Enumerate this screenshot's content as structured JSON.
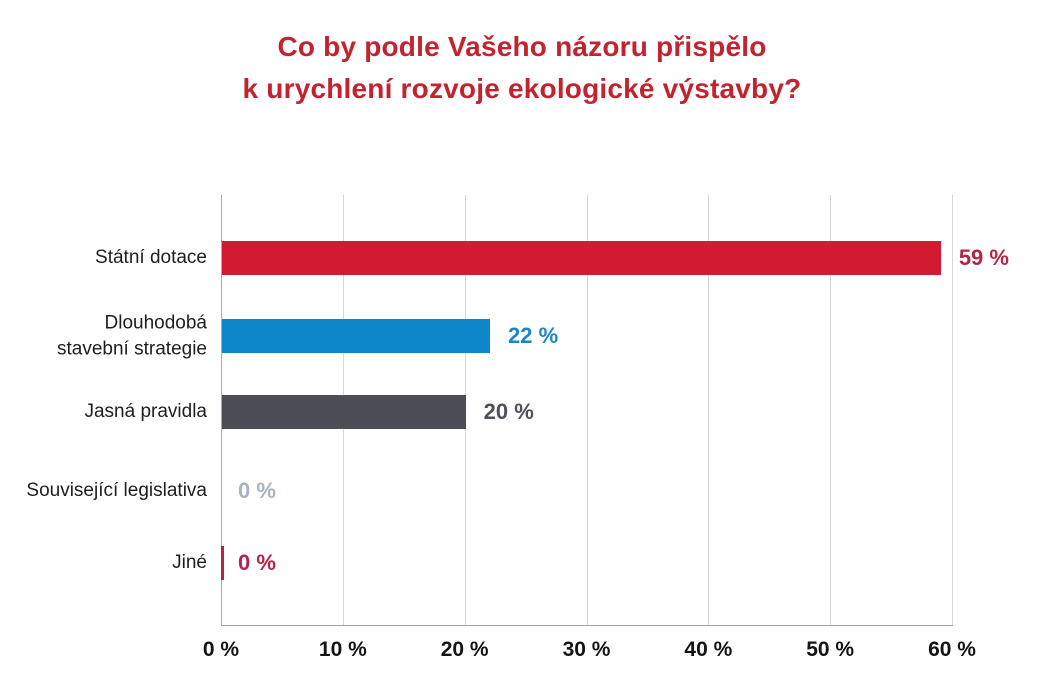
{
  "title": {
    "line1": "Co by podle Vašeho názoru přispělo",
    "line2": "k urychlení rozvoje ekologické výstavby?"
  },
  "colors": {
    "title": "#c3232f",
    "axis_line": "#ababab",
    "gridline": "#d7d7d7",
    "category_label": "#1e1e1e",
    "tick_label": "#141414"
  },
  "chart_data": {
    "type": "bar",
    "orientation": "horizontal",
    "title": "Co by podle Vašeho názoru přispělo k urychlení rozvoje ekologické výstavby?",
    "xlabel": "",
    "ylabel": "",
    "xlim": [
      0,
      60
    ],
    "x_tick_labels": [
      "0 %",
      "10 %",
      "20 %",
      "30 %",
      "40 %",
      "50 %",
      "60 %"
    ],
    "grid": "vertical",
    "legend": "none",
    "bars": [
      {
        "category": "Státní dotace",
        "value": 59,
        "value_label": "59 %",
        "bar_color": "#d21a33",
        "value_label_color": "#b42544",
        "zero_tick": false
      },
      {
        "category": "Dlouhodobá\nstavební strategie",
        "value": 22,
        "value_label": "22 %",
        "bar_color": "#0d87c9",
        "value_label_color": "#1a86c6",
        "zero_tick": false
      },
      {
        "category": "Jasná pravidla",
        "value": 20,
        "value_label": "20 %",
        "bar_color": "#4a4e54",
        "value_label_color": "#4d5157",
        "zero_tick": false
      },
      {
        "category": "Související legislativa",
        "value": 0,
        "value_label": "0 %",
        "bar_color": "#a9b2c3",
        "value_label_color": "#a9b2c3",
        "zero_tick": false
      },
      {
        "category": "Jiné",
        "value": 0,
        "value_label": "0 %",
        "bar_color": "#ba2148",
        "value_label_color": "#ba2148",
        "zero_tick": true
      }
    ]
  }
}
